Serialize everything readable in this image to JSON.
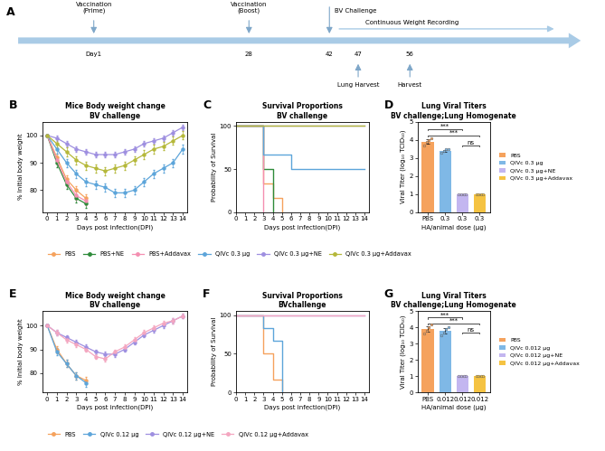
{
  "chart_data": [
    {
      "panel": "A",
      "type": "timeline",
      "vaccinations": [
        {
          "day": 1,
          "day_label": "Day1",
          "text": "Vaccination\n(Prime)"
        },
        {
          "day": 28,
          "day_label": "28",
          "text": "Vaccination\n(Boost)"
        }
      ],
      "challenge": {
        "day": 42,
        "day_label": "42",
        "text": "BV Challenge"
      },
      "recording": "Continuous Weight Recording",
      "harvests": [
        {
          "day": 47,
          "day_label": "47",
          "text": "Lung Harvest"
        },
        {
          "day": 56,
          "day_label": "56",
          "text": "Harvest"
        }
      ]
    },
    {
      "panel": "B",
      "type": "line",
      "title": "Mice Body weight change",
      "subtitle": "BV challenge",
      "x_label": "Days post infection(DPI)",
      "y_label": "% Initial body weight",
      "x": [
        0,
        1,
        2,
        3,
        4,
        5,
        6,
        7,
        8,
        9,
        10,
        11,
        12,
        13,
        14
      ],
      "xlim": [
        -0.5,
        14.5
      ],
      "xticks": [
        0,
        1,
        2,
        3,
        4,
        5,
        6,
        7,
        8,
        9,
        10,
        11,
        12,
        13,
        14
      ],
      "ylim": [
        72,
        105
      ],
      "yticks": [
        80,
        90,
        100
      ],
      "legend": "below",
      "series": [
        {
          "name": "PBS",
          "color": "#F5A25D",
          "values": [
            100,
            92,
            84,
            80,
            77,
            null,
            null,
            null,
            null,
            null,
            null,
            null,
            null,
            null,
            null
          ],
          "errors": [
            0,
            1.5,
            1.5,
            1.5,
            1.5,
            null,
            null,
            null,
            null,
            null,
            null,
            null,
            null,
            null,
            null
          ]
        },
        {
          "name": "PBS+NE",
          "color": "#2E8B3A",
          "values": [
            100,
            90,
            82,
            77,
            75,
            null,
            null,
            null,
            null,
            null,
            null,
            null,
            null,
            null,
            null
          ],
          "errors": [
            0,
            1.5,
            1.5,
            1.5,
            1.5,
            null,
            null,
            null,
            null,
            null,
            null,
            null,
            null,
            null,
            null
          ]
        },
        {
          "name": "PBS+Addavax",
          "color": "#F48FB1",
          "values": [
            100,
            91,
            83,
            78,
            76,
            null,
            null,
            null,
            null,
            null,
            null,
            null,
            null,
            null,
            null
          ],
          "errors": [
            0,
            1.5,
            1.5,
            1.5,
            1.5,
            null,
            null,
            null,
            null,
            null,
            null,
            null,
            null,
            null,
            null
          ]
        },
        {
          "name": "QIVc 0.3 µg",
          "color": "#5DA5DA",
          "values": [
            100,
            95,
            90,
            86,
            83,
            82,
            81,
            79,
            79,
            80,
            83,
            86,
            88,
            90,
            95
          ],
          "errors": [
            0,
            1.5,
            1.5,
            1.5,
            1.5,
            1.5,
            1.5,
            1.5,
            1.5,
            1.5,
            1.5,
            1.5,
            1.5,
            1.5,
            1.5
          ]
        },
        {
          "name": "QIVc 0.3 µg+NE",
          "color": "#9E8FE0",
          "values": [
            100,
            99,
            97,
            95,
            94,
            93,
            93,
            93,
            94,
            95,
            97,
            98,
            99,
            101,
            103
          ],
          "errors": [
            0,
            1,
            1,
            1,
            1,
            1,
            1,
            1,
            1,
            1,
            1,
            1,
            1,
            1,
            1
          ]
        },
        {
          "name": "QIVc 0.3 µg+Addavax",
          "color": "#B5B83A",
          "values": [
            100,
            97,
            94,
            91,
            89,
            88,
            87,
            88,
            89,
            91,
            93,
            95,
            96,
            98,
            100
          ],
          "errors": [
            0,
            1.5,
            1.5,
            1.5,
            1.5,
            1.5,
            1.5,
            1.5,
            1.5,
            1.5,
            1.5,
            1.5,
            1.5,
            1.5,
            1.5
          ]
        }
      ]
    },
    {
      "panel": "C",
      "type": "step",
      "title": "Survival Proportions",
      "subtitle": "BV challenge",
      "x_label": "Days post infection(DPI)",
      "y_label": "Probability of Survival",
      "xlim": [
        0,
        14.5
      ],
      "xticks": [
        0,
        1,
        2,
        3,
        4,
        5,
        6,
        7,
        8,
        9,
        10,
        11,
        12,
        13,
        14
      ],
      "ylim": [
        0,
        105
      ],
      "yticks": [
        0,
        50,
        100
      ],
      "series": [
        {
          "color": "#F5A25D",
          "x": [
            0,
            3,
            4,
            5
          ],
          "values": [
            100,
            33.3,
            16.7,
            0
          ]
        },
        {
          "color": "#2E8B3A",
          "x": [
            0,
            3,
            4
          ],
          "values": [
            100,
            50,
            0
          ]
        },
        {
          "color": "#F48FB1",
          "x": [
            0,
            3
          ],
          "values": [
            100,
            0
          ]
        },
        {
          "color": "#5DA5DA",
          "x": [
            0,
            3,
            6,
            14
          ],
          "values": [
            100,
            66.7,
            50,
            50
          ]
        },
        {
          "color": "#9E8FE0",
          "x": [
            0,
            14
          ],
          "values": [
            100,
            100
          ]
        },
        {
          "color": "#B5B83A",
          "x": [
            0,
            14
          ],
          "values": [
            100,
            100
          ]
        }
      ]
    },
    {
      "panel": "D",
      "type": "bar",
      "title": "Lung Viral Titers",
      "subtitle": "BV challenge;Lung Homogenate",
      "x_label": "HA/animal dose (μg)",
      "y_label": "Viral Titer (log₁₀ TCID₅₀)",
      "categories": [
        "PBS",
        "0.3",
        "0.3",
        "0.3"
      ],
      "names": [
        "PBS",
        "QIVc 0.3 µg",
        "QIVc 0.3 µg+NE",
        "QIVc 0.3 µg+Addavax"
      ],
      "colors": [
        "#F5A25D",
        "#7FB8E6",
        "#C3B6F0",
        "#F5C342"
      ],
      "values": [
        3.9,
        3.4,
        1.0,
        1.0
      ],
      "errors": [
        0.12,
        0.05,
        0,
        0
      ],
      "points": [
        [
          3.7,
          3.9,
          4.0,
          4.1
        ],
        [
          3.3,
          3.4,
          3.5,
          3.5
        ],
        [
          1,
          1,
          1,
          1
        ],
        [
          1,
          1,
          1,
          1
        ]
      ],
      "ylim": [
        0,
        5
      ],
      "yticks": [
        0,
        1,
        2,
        3,
        4,
        5
      ],
      "legend": "right",
      "comparisons": [
        {
          "from": 0,
          "to": 2,
          "y": 4.6,
          "label": "***"
        },
        {
          "from": 0,
          "to": 3,
          "y": 4.25,
          "label": "***"
        },
        {
          "from": 2,
          "to": 3,
          "y": 3.7,
          "label": "ns"
        }
      ]
    },
    {
      "panel": "E",
      "type": "line",
      "title": "Mice Body weight change",
      "subtitle": "BV challenge",
      "x_label": "Days post infection(DPI)",
      "y_label": "% Initial body weight",
      "x": [
        0,
        1,
        2,
        3,
        4,
        5,
        6,
        7,
        8,
        9,
        10,
        11,
        12,
        13,
        14
      ],
      "xlim": [
        -0.5,
        14.5
      ],
      "xticks": [
        0,
        1,
        2,
        3,
        4,
        5,
        6,
        7,
        8,
        9,
        10,
        11,
        12,
        13,
        14
      ],
      "ylim": [
        72,
        106
      ],
      "yticks": [
        80,
        90,
        100
      ],
      "legend": "below",
      "series": [
        {
          "name": "PBS",
          "color": "#F5A25D",
          "values": [
            100,
            90,
            84,
            79,
            77,
            null,
            null,
            null,
            null,
            null,
            null,
            null,
            null,
            null,
            null
          ],
          "errors": [
            0,
            1.5,
            1.5,
            1.5,
            1.5,
            null,
            null,
            null,
            null,
            null,
            null,
            null,
            null,
            null,
            null
          ]
        },
        {
          "name": "QIVc 0.12 µg",
          "color": "#5DA5DA",
          "values": [
            100,
            89,
            84,
            79,
            76,
            null,
            null,
            null,
            null,
            null,
            null,
            null,
            null,
            null,
            null
          ],
          "errors": [
            0,
            1.5,
            1.5,
            1.5,
            1.5,
            null,
            null,
            null,
            null,
            null,
            null,
            null,
            null,
            null,
            null
          ]
        },
        {
          "name": "QIVc 0.12 µg+NE",
          "color": "#9E8FE0",
          "values": [
            100,
            97,
            95,
            93,
            91,
            89,
            88,
            88,
            90,
            93,
            96,
            98,
            100,
            102,
            104
          ],
          "errors": [
            0,
            1,
            1,
            1,
            1,
            1,
            1,
            1,
            1,
            1,
            1,
            1,
            1,
            1,
            1
          ]
        },
        {
          "name": "QIVc 0.12 µg+Addavax",
          "color": "#F4A6C0",
          "values": [
            100,
            97,
            94,
            92,
            90,
            87,
            86,
            89,
            91,
            94,
            97,
            99,
            101,
            102,
            104
          ],
          "errors": [
            0,
            1,
            1,
            1,
            1,
            1,
            1,
            1,
            1,
            1,
            1,
            1,
            1,
            1,
            1
          ]
        }
      ]
    },
    {
      "panel": "F",
      "type": "step",
      "title": "Survival Proportions",
      "subtitle": "BVchallenge",
      "x_label": "Days post infection(DPI)",
      "y_label": "Probability of Survival",
      "xlim": [
        0,
        14.5
      ],
      "xticks": [
        0,
        1,
        2,
        3,
        4,
        5,
        6,
        7,
        8,
        9,
        10,
        11,
        12,
        13,
        14
      ],
      "ylim": [
        0,
        105
      ],
      "yticks": [
        0,
        50,
        100
      ],
      "series": [
        {
          "color": "#F5A25D",
          "x": [
            0,
            3,
            4,
            5
          ],
          "values": [
            100,
            50,
            16.7,
            0
          ]
        },
        {
          "color": "#5DA5DA",
          "x": [
            0,
            3,
            4,
            5
          ],
          "values": [
            100,
            83.3,
            66.7,
            0
          ]
        },
        {
          "color": "#9E8FE0",
          "x": [
            0,
            14
          ],
          "values": [
            100,
            100
          ]
        },
        {
          "color": "#F4A6C0",
          "x": [
            0,
            14
          ],
          "values": [
            100,
            100
          ]
        }
      ]
    },
    {
      "panel": "G",
      "type": "bar",
      "title": "Lung Viral Titers",
      "subtitle": "BV challenge;Lung Homogenate",
      "x_label": "HA/animal dose (μg)",
      "y_label": "Viral Titer (log₁₀ TCID₅₀)",
      "categories": [
        "PBS",
        "0.012",
        "0.012",
        "0.012"
      ],
      "names": [
        "PBS",
        "QIVc 0.012 µg",
        "QIVc 0.012 µg+NE",
        "QIVc 0.012 µg+Addavax"
      ],
      "colors": [
        "#F5A25D",
        "#7FB8E6",
        "#C3B6F0",
        "#F5C342"
      ],
      "values": [
        3.9,
        3.8,
        1.0,
        1.0
      ],
      "errors": [
        0.15,
        0.15,
        0,
        0
      ],
      "points": [
        [
          3.6,
          3.8,
          4.0,
          4.2
        ],
        [
          3.5,
          3.7,
          3.9,
          4.0
        ],
        [
          1,
          1,
          1,
          1
        ],
        [
          1,
          1,
          1,
          1
        ]
      ],
      "ylim": [
        0,
        5
      ],
      "yticks": [
        0,
        1,
        2,
        3,
        4,
        5
      ],
      "legend": "right",
      "comparisons": [
        {
          "from": 0,
          "to": 2,
          "y": 4.6,
          "label": "***"
        },
        {
          "from": 0,
          "to": 3,
          "y": 4.25,
          "label": "***"
        },
        {
          "from": 2,
          "to": 3,
          "y": 3.7,
          "label": "ns"
        }
      ]
    }
  ]
}
